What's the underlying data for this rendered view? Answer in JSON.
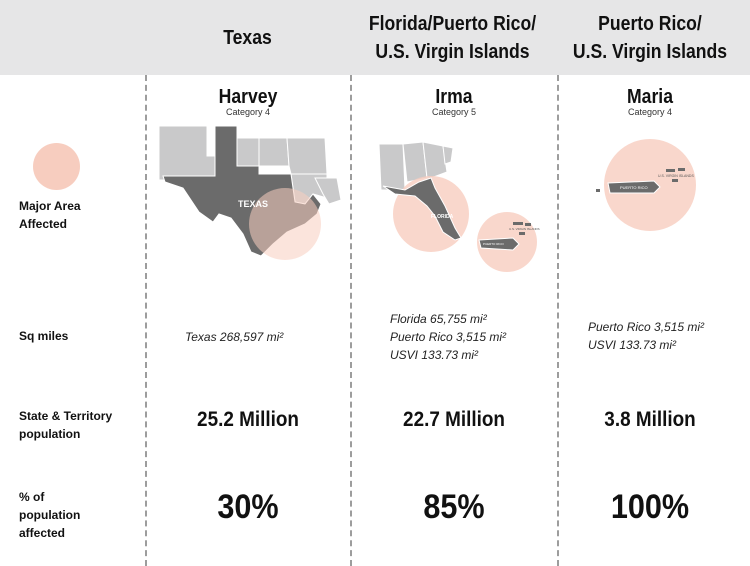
{
  "columns": [
    {
      "title_lines": [
        "Texas"
      ],
      "storm": "Harvey",
      "category": "Category 4",
      "sq_miles": [
        "Texas 268,597 mi²"
      ],
      "population": "25.2 Million",
      "percent": "30%",
      "map_labels": [
        "TEXAS"
      ]
    },
    {
      "title_lines": [
        "Florida/Puerto Rico/",
        "U.S. Virgin Islands"
      ],
      "storm": "Irma",
      "category": "Category 5",
      "sq_miles": [
        "Florida 65,755 mi²",
        "Puerto Rico 3,515 mi²",
        "USVI 133.73 mi²"
      ],
      "population": "22.7 Million",
      "percent": "85%",
      "map_labels": [
        "FLORIDA",
        "U.S. VIRGIN ISLANDS",
        "PUERTO RICO"
      ]
    },
    {
      "title_lines": [
        "Puerto Rico/",
        "U.S. Virgin Islands"
      ],
      "storm": "Maria",
      "category": "Category 4",
      "sq_miles": [
        "Puerto Rico 3,515 mi²",
        "USVI 133.73 mi²"
      ],
      "population": "3.8 Million",
      "percent": "100%",
      "map_labels": [
        "U.S. VIRGIN ISLANDS",
        "PUERTO RICO"
      ]
    }
  ],
  "row_labels": {
    "area": [
      "Major Area",
      "Affected"
    ],
    "sq": [
      "Sq miles"
    ],
    "pop": [
      "State & Territory",
      "population"
    ],
    "pct": [
      "% of",
      "population",
      "affected"
    ]
  },
  "colors": {
    "header_bg": "#e6e6e7",
    "circle_fill": "#f7cdbf",
    "state_light": "#c9c9ca",
    "state_dark": "#6b6b6b",
    "divider": "#9d9d9d"
  }
}
